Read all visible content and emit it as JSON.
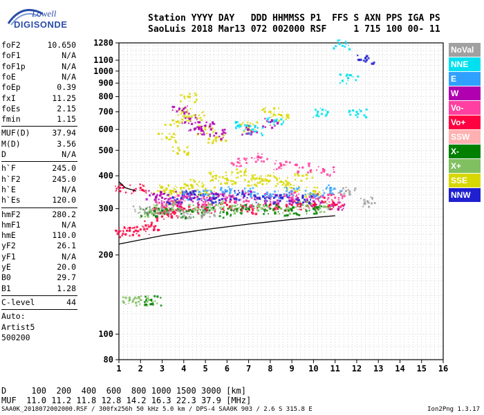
{
  "logo": {
    "top": "Lowell",
    "bottom": "DIGISONDE"
  },
  "header": {
    "line1": "Station YYYY DAY   DDD HHMMSS P1  FFS S AXN PPS IGA PS",
    "line2": "SaoLuis 2018 Mar13 072 002000 RSF     1 715 100 00- 11"
  },
  "params_group1": [
    {
      "name": "foF2",
      "value": "10.650"
    },
    {
      "name": "foF1",
      "value": "N/A"
    },
    {
      "name": "foF1p",
      "value": "N/A"
    },
    {
      "name": "foE",
      "value": "N/A"
    },
    {
      "name": "foEp",
      "value": "0.39"
    },
    {
      "name": "fxI",
      "value": "11.25"
    },
    {
      "name": "foEs",
      "value": "2.15"
    },
    {
      "name": "fmin",
      "value": "1.15"
    }
  ],
  "params_group2": [
    {
      "name": "MUF(D)",
      "value": "37.94"
    },
    {
      "name": "M(D)",
      "value": "3.56"
    },
    {
      "name": "D",
      "value": "N/A"
    }
  ],
  "params_group3": [
    {
      "name": "h`F",
      "value": "245.0"
    },
    {
      "name": "h`F2",
      "value": "245.0"
    },
    {
      "name": "h`E",
      "value": "N/A"
    },
    {
      "name": "h`Es",
      "value": "120.0"
    }
  ],
  "params_group4": [
    {
      "name": "hmF2",
      "value": "280.2"
    },
    {
      "name": "hmF1",
      "value": "N/A"
    },
    {
      "name": "hmE",
      "value": "110.0"
    },
    {
      "name": "yF2",
      "value": "26.1"
    },
    {
      "name": "yF1",
      "value": "N/A"
    },
    {
      "name": "yE",
      "value": "20.0"
    },
    {
      "name": "B0",
      "value": "29.7"
    },
    {
      "name": "B1",
      "value": "1.28"
    }
  ],
  "clevel": {
    "name": "C-level",
    "value": "44"
  },
  "autoscale": {
    "line1": "Auto:",
    "line2": "Artist5",
    "line3": "500200"
  },
  "legend": [
    {
      "label": "NoVal",
      "color": "#a0a0a0"
    },
    {
      "label": "NNE",
      "color": "#00e0f0"
    },
    {
      "label": "E",
      "color": "#30a0ff"
    },
    {
      "label": "W",
      "color": "#b000b0"
    },
    {
      "label": "Vo-",
      "color": "#ff40a0"
    },
    {
      "label": "Vo+",
      "color": "#ff0040"
    },
    {
      "label": "SSW",
      "color": "#ffb0b0"
    },
    {
      "label": "X-",
      "color": "#008000"
    },
    {
      "label": "X+",
      "color": "#80c060"
    },
    {
      "label": "SSE",
      "color": "#d8d800"
    },
    {
      "label": "NNW",
      "color": "#2020d0"
    }
  ],
  "bottom_table": {
    "line1": "D     100  200  400  600  800 1000 1500 3000 [km]",
    "line2": "MUF  11.0 11.2 11.8 12.8 14.2 16.3 22.3 37.9 [MHz]"
  },
  "footer": {
    "left": "SAA0K_2018072002000.RSF / 300fx256h 50 kHz 5.0 km / DPS-4 SAA0K 903 / 2.6 S 315.8 E",
    "right": "Ion2Png 1.3.17"
  },
  "chart_data": {
    "type": "scatter",
    "title": "",
    "xlabel": "",
    "ylabel": "",
    "xlim": [
      1,
      16
    ],
    "ylim": [
      80,
      1280
    ],
    "y_scale": "log",
    "xticks": [
      1,
      2,
      3,
      4,
      5,
      6,
      7,
      8,
      9,
      10,
      11,
      12,
      13,
      14,
      15,
      16
    ],
    "yticks": [
      80,
      100,
      200,
      300,
      400,
      500,
      600,
      700,
      800,
      900,
      1000,
      1100,
      1280
    ],
    "grid": true,
    "legend_position": "right",
    "series": [
      {
        "name": "SSE",
        "color": "#d8d800",
        "points": [
          [
            3.0,
            360
          ],
          [
            3.5,
            350
          ],
          [
            4.0,
            360
          ],
          [
            4.5,
            380
          ],
          [
            5.0,
            350
          ],
          [
            5.5,
            400
          ],
          [
            6.0,
            390
          ],
          [
            6.5,
            410
          ],
          [
            7.0,
            380
          ],
          [
            7.5,
            390
          ],
          [
            8.0,
            400
          ],
          [
            8.5,
            380
          ],
          [
            9.0,
            360
          ],
          [
            3.5,
            650
          ],
          [
            4.0,
            700
          ],
          [
            4.5,
            680
          ],
          [
            5.0,
            600
          ],
          [
            5.5,
            560
          ],
          [
            7.0,
            620
          ],
          [
            8.0,
            700
          ],
          [
            8.5,
            680
          ],
          [
            3.2,
            560
          ],
          [
            4.2,
            800
          ],
          [
            3.8,
            500
          ],
          [
            9.5,
            400
          ],
          [
            10.0,
            350
          ]
        ]
      },
      {
        "name": "W",
        "color": "#b000b0",
        "points": [
          [
            2.6,
            340
          ],
          [
            3.0,
            330
          ],
          [
            3.5,
            320
          ],
          [
            4.0,
            340
          ],
          [
            4.5,
            330
          ],
          [
            5.0,
            320
          ],
          [
            5.5,
            340
          ],
          [
            6.0,
            330
          ],
          [
            7.0,
            340
          ],
          [
            8.0,
            330
          ],
          [
            9.0,
            320
          ],
          [
            10.0,
            320
          ],
          [
            11.0,
            310
          ],
          [
            4.5,
            600
          ],
          [
            5.0,
            620
          ],
          [
            5.5,
            580
          ],
          [
            7.0,
            600
          ],
          [
            8.0,
            640
          ],
          [
            3.8,
            720
          ],
          [
            4.3,
            660
          ]
        ]
      },
      {
        "name": "Vo+",
        "color": "#ff0040",
        "points": [
          [
            1.0,
            245
          ],
          [
            1.5,
            247
          ],
          [
            2.0,
            250
          ],
          [
            2.5,
            260
          ],
          [
            3.0,
            280
          ],
          [
            3.5,
            290
          ],
          [
            4.0,
            300
          ],
          [
            5.0,
            300
          ],
          [
            6.0,
            310
          ],
          [
            7.0,
            300
          ],
          [
            8.0,
            310
          ],
          [
            9.0,
            310
          ],
          [
            10.0,
            310
          ],
          [
            11.0,
            310
          ],
          [
            1.2,
            360
          ],
          [
            2.0,
            360
          ],
          [
            2.8,
            300
          ],
          [
            10.5,
            330
          ]
        ]
      },
      {
        "name": "Vo-",
        "color": "#ff40a0",
        "points": [
          [
            3.0,
            310
          ],
          [
            3.5,
            320
          ],
          [
            4.0,
            330
          ],
          [
            5.0,
            320
          ],
          [
            6.0,
            330
          ],
          [
            7.0,
            320
          ],
          [
            8.0,
            330
          ],
          [
            9.0,
            340
          ],
          [
            10.0,
            330
          ],
          [
            11.0,
            330
          ],
          [
            6.5,
            450
          ],
          [
            7.5,
            470
          ],
          [
            8.5,
            440
          ],
          [
            9.5,
            430
          ],
          [
            10.5,
            420
          ]
        ]
      },
      {
        "name": "X+",
        "color": "#80c060",
        "points": [
          [
            2.2,
            290
          ],
          [
            2.8,
            300
          ],
          [
            3.5,
            310
          ],
          [
            4.5,
            300
          ],
          [
            5.5,
            310
          ],
          [
            6.5,
            300
          ],
          [
            7.5,
            310
          ],
          [
            8.5,
            300
          ],
          [
            9.5,
            310
          ],
          [
            10.5,
            305
          ],
          [
            1.5,
            135
          ],
          [
            2.0,
            135
          ],
          [
            2.4,
            135
          ]
        ]
      },
      {
        "name": "X-",
        "color": "#008000",
        "points": [
          [
            2.4,
            290
          ],
          [
            3.0,
            295
          ],
          [
            4.0,
            290
          ],
          [
            5.0,
            295
          ],
          [
            6.0,
            290
          ],
          [
            7.0,
            300
          ],
          [
            8.0,
            300
          ],
          [
            9.0,
            295
          ],
          [
            10.0,
            300
          ],
          [
            2.5,
            135
          ]
        ]
      },
      {
        "name": "NNE",
        "color": "#00e0f0",
        "points": [
          [
            6.5,
            620
          ],
          [
            7.2,
            600
          ],
          [
            8.2,
            650
          ],
          [
            10.2,
            700
          ],
          [
            11.2,
            1270
          ],
          [
            11.6,
            940
          ],
          [
            12.0,
            700
          ]
        ]
      },
      {
        "name": "E",
        "color": "#30a0ff",
        "points": [
          [
            4.0,
            340
          ],
          [
            5.0,
            340
          ],
          [
            6.0,
            350
          ],
          [
            7.0,
            350
          ],
          [
            8.0,
            340
          ],
          [
            9.0,
            350
          ],
          [
            10.0,
            340
          ],
          [
            10.8,
            360
          ]
        ]
      },
      {
        "name": "NNW",
        "color": "#2020d0",
        "points": [
          [
            3.5,
            330
          ],
          [
            4.5,
            340
          ],
          [
            5.5,
            330
          ],
          [
            6.5,
            340
          ],
          [
            7.5,
            330
          ],
          [
            8.5,
            330
          ],
          [
            9.5,
            330
          ],
          [
            12.4,
            1120
          ]
        ]
      },
      {
        "name": "NoVal",
        "color": "#a0a0a0",
        "points": [
          [
            2.0,
            300
          ],
          [
            3.0,
            300
          ],
          [
            4.0,
            290
          ],
          [
            5.0,
            290
          ],
          [
            11.5,
            350
          ],
          [
            12.5,
            320
          ]
        ]
      }
    ],
    "trace": {
      "name": "virtual height trace",
      "color": "#000000",
      "points": [
        [
          1.0,
          220
        ],
        [
          3.0,
          237
        ],
        [
          5.0,
          250
        ],
        [
          7.0,
          262
        ],
        [
          9.0,
          273
        ],
        [
          11.0,
          282
        ]
      ]
    },
    "trace2": {
      "name": "O-trace",
      "color": "#000000",
      "points": [
        [
          1.0,
          380
        ],
        [
          1.3,
          360
        ],
        [
          1.8,
          350
        ]
      ]
    }
  }
}
